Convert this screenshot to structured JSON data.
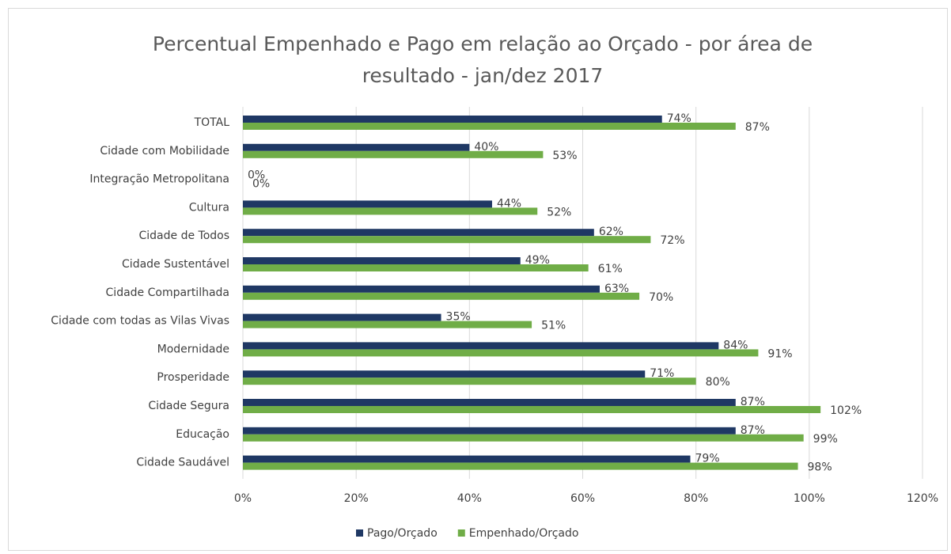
{
  "chart_data": {
    "type": "bar",
    "orientation": "horizontal",
    "title": "Percentual Empenhado e Pago em relação ao Orçado - por área de resultado - jan/dez 2017",
    "categories": [
      "TOTAL",
      "Cidade com Mobilidade",
      "Integração Metropolitana",
      "Cultura",
      "Cidade de Todos",
      "Cidade Sustentável",
      "Cidade Compartilhada",
      "Cidade com todas as Vilas Vivas",
      "Modernidade",
      "Prosperidade",
      "Cidade Segura",
      "Educação",
      "Cidade Saudável"
    ],
    "series": [
      {
        "name": "Pago/Orçado",
        "color": "#1f3864",
        "values": [
          74,
          40,
          0,
          44,
          62,
          49,
          63,
          35,
          84,
          71,
          87,
          87,
          79
        ],
        "value_labels": [
          "74%",
          "40%",
          "0%",
          "44%",
          "62%",
          "49%",
          "63%",
          "35%",
          "84%",
          "71%",
          "87%",
          "87%",
          "79%"
        ]
      },
      {
        "name": "Empenhado/Orçado",
        "color": "#70ad47",
        "values": [
          87,
          53,
          0,
          52,
          72,
          61,
          70,
          51,
          91,
          80,
          102,
          99,
          98
        ],
        "value_labels": [
          "87%",
          "53%",
          "0%",
          "52%",
          "72%",
          "61%",
          "70%",
          "51%",
          "91%",
          "80%",
          "102%",
          "99%",
          "98%"
        ]
      }
    ],
    "xlim": [
      0,
      120
    ],
    "xticks": [
      {
        "value": 0,
        "label": "0%"
      },
      {
        "value": 20,
        "label": "20%"
      },
      {
        "value": 40,
        "label": "40%"
      },
      {
        "value": 60,
        "label": "60%"
      },
      {
        "value": 80,
        "label": "80%"
      },
      {
        "value": 100,
        "label": "100%"
      },
      {
        "value": 120,
        "label": "120%"
      }
    ],
    "grid": true,
    "legend": "bottom"
  }
}
